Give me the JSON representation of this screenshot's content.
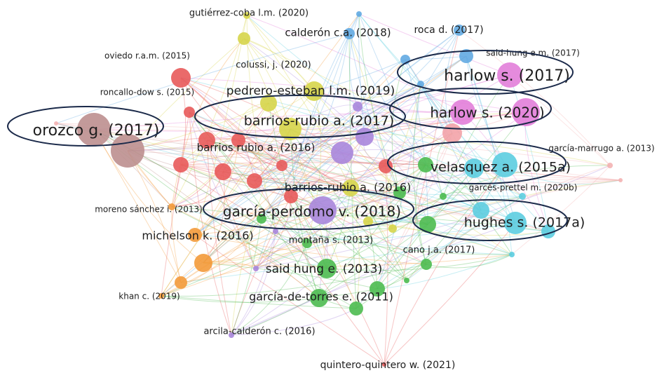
{
  "nodes": [
    {
      "label": "gutiérrez-coba l.m. (2020)"
    },
    {
      "label": "calderón c.a. (2018)"
    },
    {
      "label": "roca d. (2017)"
    },
    {
      "label": "said-hung e.m. (2017)"
    },
    {
      "label": "oviedo r.a.m. (2015)"
    },
    {
      "label": "colussi, j. (2020)"
    },
    {
      "label": "harlow s. (2017)"
    },
    {
      "label": "roncallo-dow s. (2015)"
    },
    {
      "label": "pedrero-esteban l.m. (2019)"
    },
    {
      "label": "harlow s. (2020)"
    },
    {
      "label": "barrios-rubio a. (2017)"
    },
    {
      "label": "orozco g. (2017)"
    },
    {
      "label": "barrios rubio a. (2016)"
    },
    {
      "label": "garcía-marrugo a. (2013)"
    },
    {
      "label": "velasquez a. (2015a)"
    },
    {
      "label": "barrios-rubio a. (2016)"
    },
    {
      "label": "garcés-prettel m. (2020b)"
    },
    {
      "label": "moreno sánchez i. (2013)"
    },
    {
      "label": "garcía-perdomo v. (2018)"
    },
    {
      "label": "hughes s. (2017a)"
    },
    {
      "label": "michelson k. (2016)"
    },
    {
      "label": "montaña s. (2013)"
    },
    {
      "label": "cano j.a. (2017)"
    },
    {
      "label": "said hung e. (2013)"
    },
    {
      "label": "khan c. (2019)"
    },
    {
      "label": "garcía-de-torres e. (2011)"
    },
    {
      "label": "arcila-calderón c. (2016)"
    },
    {
      "label": "quintero-quintero w. (2021)"
    }
  ]
}
